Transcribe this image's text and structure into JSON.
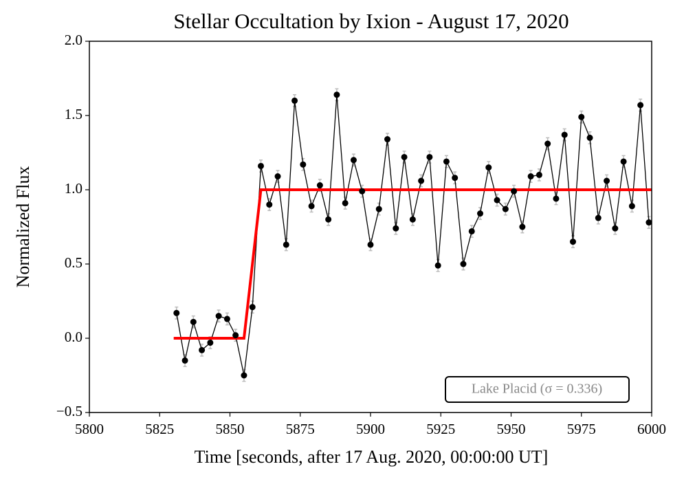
{
  "chart_data": {
    "type": "line",
    "title": "Stellar Occultation by Ixion - August 17, 2020",
    "x_label": "Time [seconds, after 17 Aug. 2020, 00:00:00 UT]",
    "y_label": "Normalized Flux",
    "legend_text": "Lake Placid (σ = 0.336)",
    "xlim": [
      5800,
      6000
    ],
    "ylim": [
      -0.5,
      2.0
    ],
    "xticks": [
      5800,
      5825,
      5850,
      5875,
      5900,
      5925,
      5950,
      5975,
      6000
    ],
    "yticks": [
      {
        "value": -0.5,
        "label": "−0.5"
      },
      {
        "value": 0,
        "label": "0.0"
      },
      {
        "value": 0.5,
        "label": "0.5"
      },
      {
        "value": 1,
        "label": "1.0"
      },
      {
        "value": 1.5,
        "label": "1.5"
      },
      {
        "value": 2,
        "label": "2.0"
      }
    ],
    "series": [
      {
        "color": "#000000",
        "x": [
          5831,
          5834,
          5837,
          5840,
          5843,
          5846,
          5849,
          5852,
          5855,
          5858,
          5861,
          5864,
          5867,
          5870,
          5873,
          5876,
          5879,
          5882,
          5885,
          5888,
          5891,
          5894,
          5897,
          5900,
          5903,
          5906,
          5909,
          5912,
          5915,
          5918,
          5921,
          5924,
          5927,
          5930,
          5933,
          5936,
          5939,
          5942,
          5945,
          5948,
          5951,
          5954,
          5957,
          5960,
          5963,
          5966,
          5969,
          5972,
          5975,
          5978,
          5981,
          5984,
          5987,
          5990,
          5993,
          5996,
          5999
        ],
        "values": [
          0.17,
          -0.15,
          0.11,
          -0.08,
          -0.03,
          0.15,
          0.13,
          0.02,
          -0.25,
          0.21,
          1.16,
          0.9,
          1.09,
          0.63,
          1.6,
          1.17,
          0.89,
          1.03,
          0.8,
          1.64,
          0.91,
          1.2,
          0.99,
          0.63,
          0.87,
          1.34,
          0.74,
          1.22,
          0.8,
          1.06,
          1.22,
          0.49,
          1.19,
          1.08,
          0.5,
          0.72,
          0.84,
          1.15,
          0.93,
          0.87,
          0.99,
          0.75,
          1.09,
          1.1,
          1.31,
          0.94,
          1.37,
          0.65,
          1.49,
          1.35,
          0.81,
          1.06,
          0.74,
          1.19,
          0.89,
          1.57,
          0.78
        ],
        "errors": [
          0.04,
          0.04,
          0.04,
          0.04,
          0.04,
          0.04,
          0.04,
          0.04,
          0.04,
          0.04,
          0.04,
          0.04,
          0.04,
          0.04,
          0.04,
          0.04,
          0.04,
          0.04,
          0.04,
          0.04,
          0.04,
          0.04,
          0.04,
          0.04,
          0.04,
          0.04,
          0.04,
          0.04,
          0.04,
          0.04,
          0.04,
          0.04,
          0.04,
          0.04,
          0.04,
          0.04,
          0.04,
          0.04,
          0.04,
          0.04,
          0.04,
          0.04,
          0.04,
          0.04,
          0.04,
          0.04,
          0.04,
          0.04,
          0.04,
          0.04,
          0.04,
          0.04,
          0.04,
          0.04,
          0.04,
          0.04,
          0.04
        ],
        "error_color": "#bbbbbb"
      },
      {
        "color": "#ff0000",
        "x": [
          5830,
          5855,
          5861,
          6000
        ],
        "values": [
          0,
          0,
          1,
          1
        ]
      }
    ]
  }
}
